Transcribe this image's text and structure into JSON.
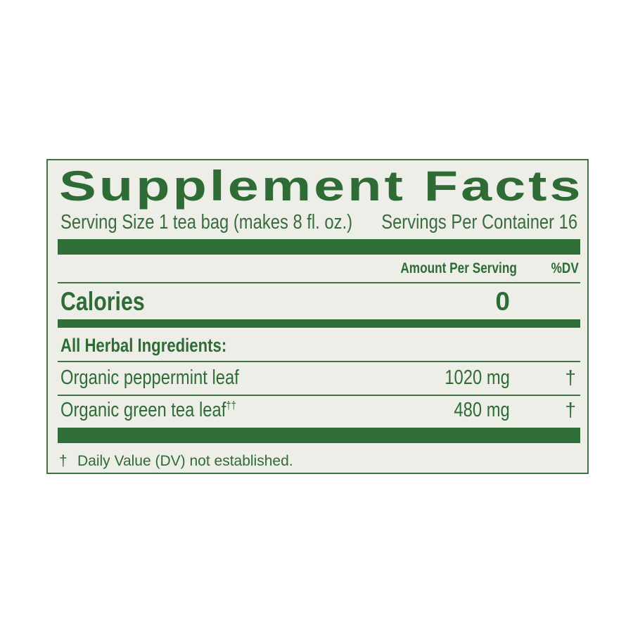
{
  "title": "Supplement Facts",
  "serving_size": "Serving Size 1 tea bag (makes 8 fl. oz.)",
  "servings_per_container": "Servings Per Container 16",
  "header": {
    "amount": "Amount Per Serving",
    "dv": "%DV"
  },
  "calories": {
    "label": "Calories",
    "value": "0"
  },
  "section_label": "All Herbal Ingredients:",
  "ingredients": [
    {
      "name": "Organic peppermint leaf",
      "mark": "",
      "amount": "1020 mg",
      "dv": "†"
    },
    {
      "name": "Organic green tea leaf",
      "mark": "††",
      "amount": "480 mg",
      "dv": "†"
    }
  ],
  "footnote": {
    "symbol": "†",
    "text": "Daily Value (DV) not established."
  },
  "colors": {
    "ink": "#2e6b35",
    "background": "#eeeee9"
  }
}
